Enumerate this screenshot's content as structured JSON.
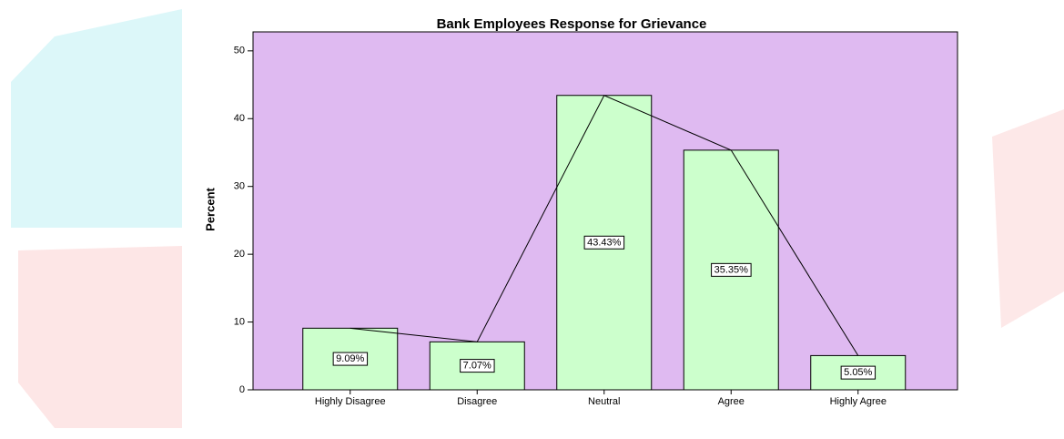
{
  "chart_data": {
    "type": "bar",
    "title": "Bank Employees Response for Grievance",
    "y_label": "Percent",
    "categories": [
      "Highly Disagree",
      "Disagree",
      "Neutral",
      "Agree",
      "Highly Agree"
    ],
    "values": [
      9.09,
      7.07,
      43.43,
      35.35,
      5.05
    ],
    "value_labels": [
      "9.09%",
      "7.07%",
      "43.43%",
      "35.35%",
      "5.05%"
    ],
    "color": "#ccffcc",
    "line": true,
    "plot_background": "#dfbaf1",
    "ylim": [
      0,
      52.8
    ],
    "yticks": [
      0,
      10,
      20,
      30,
      40,
      50
    ]
  }
}
